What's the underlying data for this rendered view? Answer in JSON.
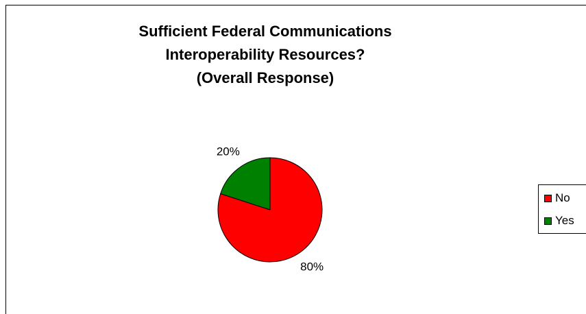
{
  "chart_data": {
    "type": "pie",
    "title_lines": [
      "Sufficient Federal Communications",
      "Interoperability Resources?",
      "(Overall Response)"
    ],
    "slices": [
      {
        "label": "No",
        "value": 80,
        "data_label": "80%",
        "color": "#FF0000"
      },
      {
        "label": "Yes",
        "value": 20,
        "data_label": "20%",
        "color": "#008000"
      }
    ],
    "legend_position": "right"
  }
}
